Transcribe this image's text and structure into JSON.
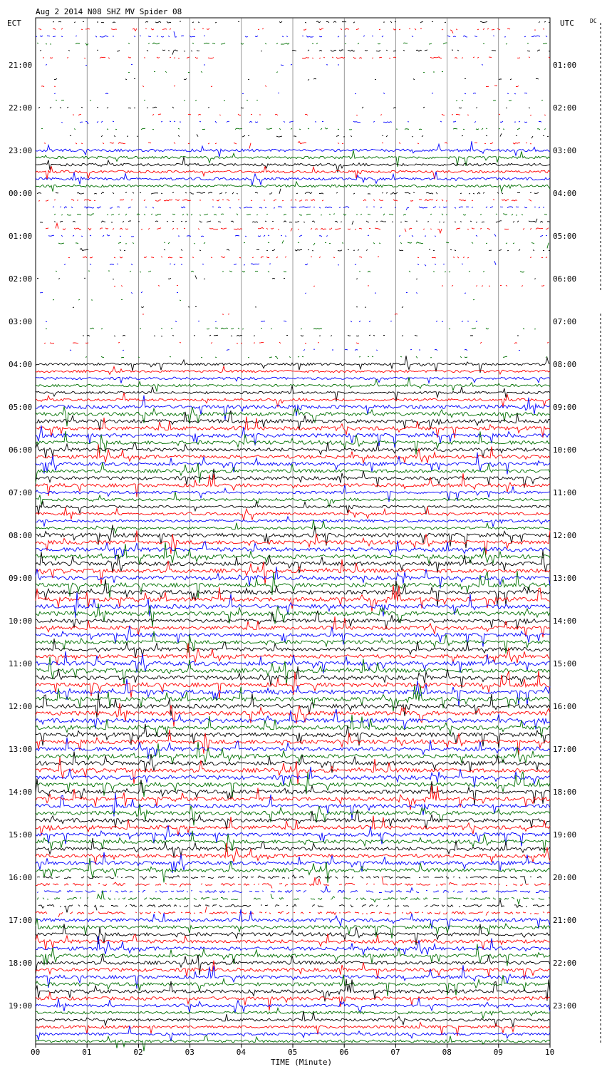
{
  "header": {
    "title": "Aug  2 2014 N08 SHZ MV Spider 08",
    "left_tz": "ECT",
    "right_tz": "UTC",
    "corner": "DC"
  },
  "chart_data": {
    "type": "helicorder",
    "title": "Aug  2 2014 N08 SHZ MV Spider 08",
    "xlabel": "TIME (Minute)",
    "x_ticks": [
      "00",
      "01",
      "02",
      "03",
      "04",
      "05",
      "06",
      "07",
      "08",
      "09",
      "10"
    ],
    "xlim": [
      0,
      10
    ],
    "lines_per_hour": 6,
    "minutes_per_line": 10,
    "left_hour_labels": [
      "21:00",
      "22:00",
      "23:00",
      "00:00",
      "01:00",
      "02:00",
      "03:00",
      "04:00",
      "05:00",
      "06:00",
      "07:00",
      "08:00",
      "09:00",
      "10:00",
      "11:00",
      "12:00",
      "13:00",
      "14:00",
      "15:00",
      "16:00",
      "17:00",
      "18:00",
      "19:00"
    ],
    "right_hour_labels": [
      "01:00",
      "02:00",
      "03:00",
      "04:00",
      "05:00",
      "06:00",
      "07:00",
      "08:00",
      "09:00",
      "10:00",
      "11:00",
      "12:00",
      "13:00",
      "14:00",
      "15:00",
      "16:00",
      "17:00",
      "18:00",
      "19:00",
      "20:00",
      "21:00",
      "22:00",
      "23:00"
    ],
    "trace_color_cycle": [
      "#000000",
      "#ff0000",
      "#0000ff",
      "#007000"
    ],
    "activity_by_hour": [
      {
        "ect": "20:00",
        "level": 0.25
      },
      {
        "ect": "21:00",
        "level": 0.1
      },
      {
        "ect": "22:00",
        "level": 0.2
      },
      {
        "ect": "23:00",
        "level": 0.55
      },
      {
        "ect": "00:00",
        "level": 0.3
      },
      {
        "ect": "01:00",
        "level": 0.2
      },
      {
        "ect": "02:00",
        "level": 0.08
      },
      {
        "ect": "03:00",
        "level": 0.15
      },
      {
        "ect": "04:00",
        "level": 0.5
      },
      {
        "ect": "05:00",
        "level": 0.9
      },
      {
        "ect": "06:00",
        "level": 0.8
      },
      {
        "ect": "07:00",
        "level": 0.55
      },
      {
        "ect": "08:00",
        "level": 0.95
      },
      {
        "ect": "09:00",
        "level": 1.0
      },
      {
        "ect": "10:00",
        "level": 0.85
      },
      {
        "ect": "11:00",
        "level": 1.0
      },
      {
        "ect": "12:00",
        "level": 1.0
      },
      {
        "ect": "13:00",
        "level": 0.95
      },
      {
        "ect": "14:00",
        "level": 0.9
      },
      {
        "ect": "15:00",
        "level": 0.85
      },
      {
        "ect": "16:00",
        "level": 0.45
      },
      {
        "ect": "17:00",
        "level": 0.8
      },
      {
        "ect": "18:00",
        "level": 0.8
      },
      {
        "ect": "19:00",
        "level": 0.6
      }
    ]
  }
}
